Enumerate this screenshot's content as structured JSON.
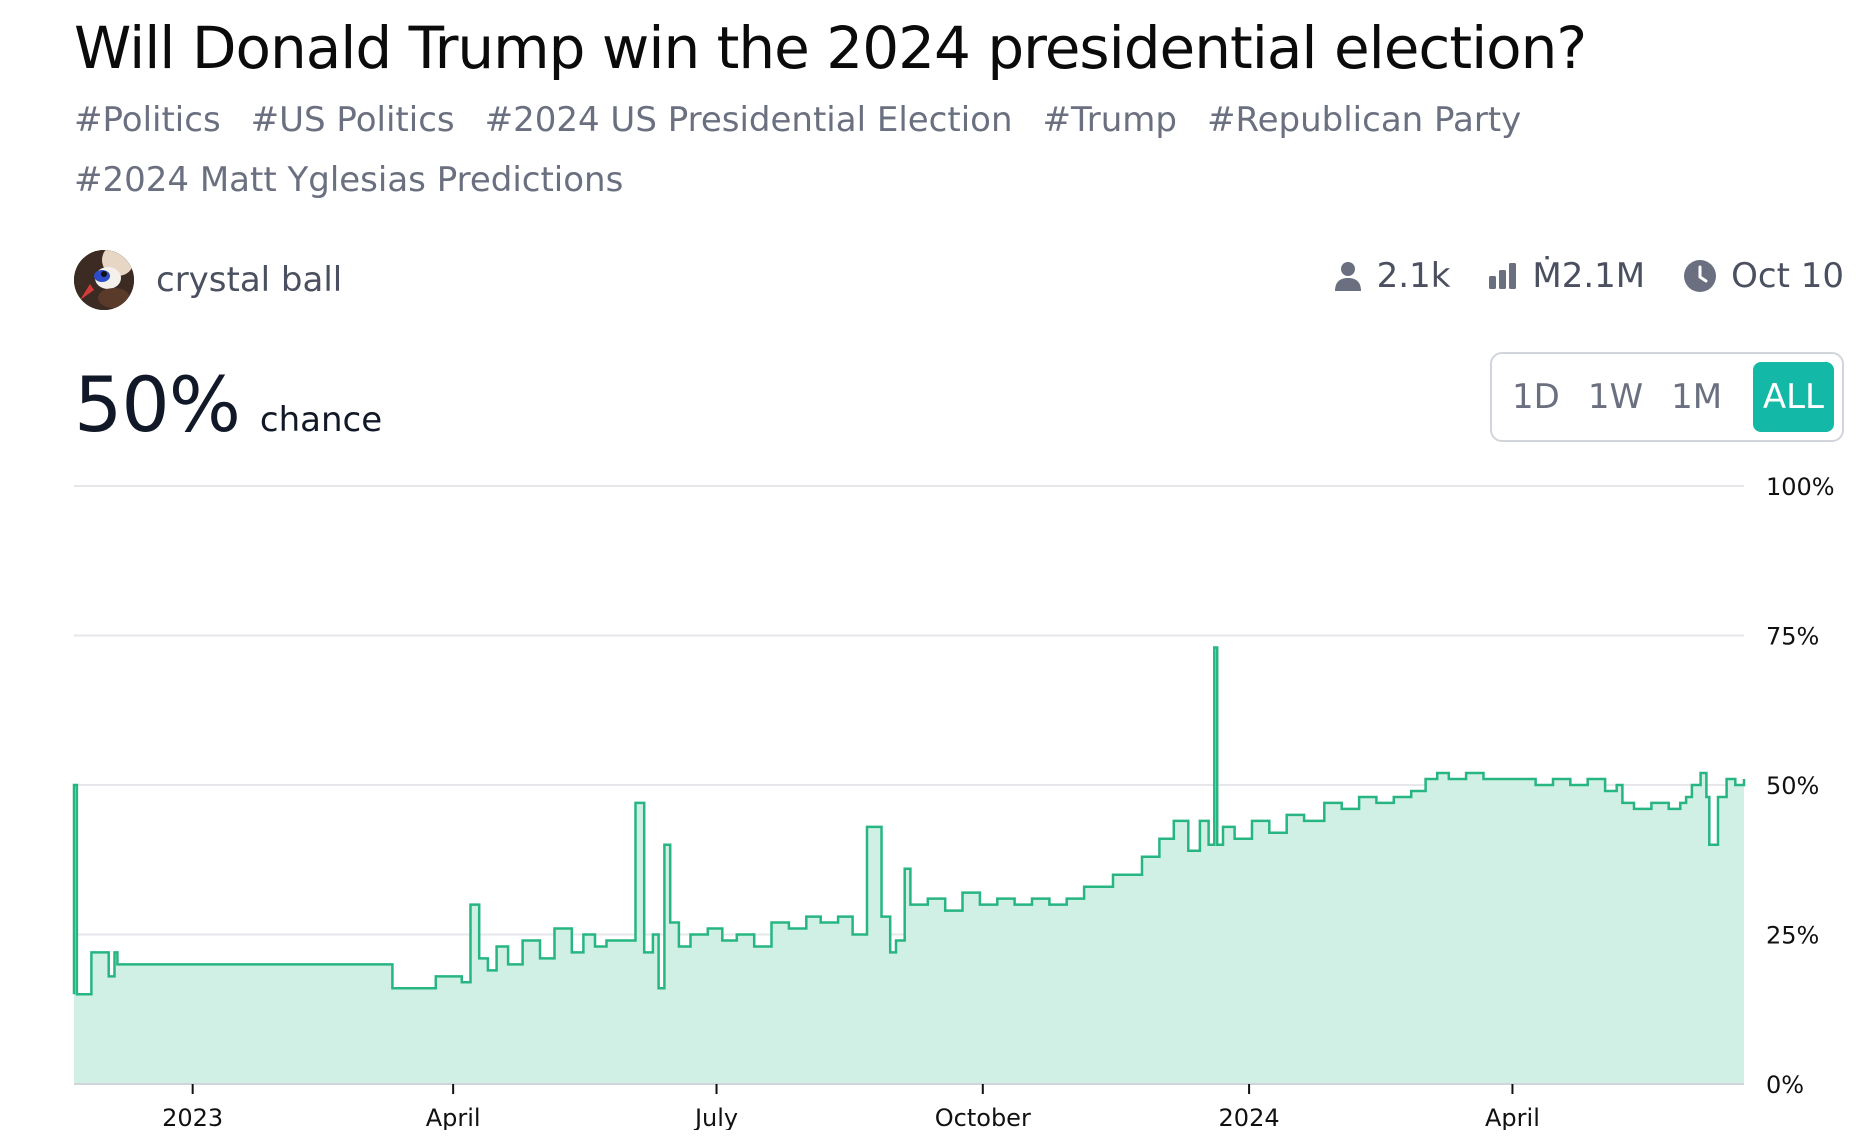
{
  "market": {
    "title": "Will Donald Trump win the 2024 presidential election?",
    "tags": [
      "#Politics",
      "#US Politics",
      "#2024 US Presidential Election",
      "#Trump",
      "#Republican Party",
      "#2024 Matt Yglesias Predictions"
    ],
    "author": "crystal ball",
    "stats": {
      "traders": "2.1k",
      "volume": "Ṁ2.1M",
      "close_date": "Oct 10"
    },
    "probability": "50%",
    "probability_label": "chance",
    "time_ranges": [
      "1D",
      "1W",
      "1M",
      "ALL"
    ],
    "selected_range": "ALL"
  },
  "colors": {
    "line": "#27b582",
    "area": "#d1f0e5",
    "accent": "#14b8a6",
    "grid": "#e5e7eb"
  },
  "chart_data": {
    "type": "area",
    "title": "",
    "xlabel": "",
    "ylabel": "",
    "ylim": [
      0,
      100
    ],
    "xlim": [
      "2022-11-21",
      "2024-06-20"
    ],
    "y_tick_labels": [
      "0%",
      "25%",
      "50%",
      "75%",
      "100%"
    ],
    "y_ticks": [
      0,
      25,
      50,
      75,
      100
    ],
    "x_tick_labels": [
      "2023",
      "April",
      "July",
      "October",
      "2024",
      "April"
    ],
    "x_ticks": [
      "2023-01-01",
      "2023-04-01",
      "2023-07-01",
      "2023-10-01",
      "2024-01-01",
      "2024-04-01"
    ],
    "grid": true,
    "series": [
      {
        "x": [
          "2022-11-21",
          "2022-11-21",
          "2022-11-22",
          "2022-11-26",
          "2022-11-27",
          "2022-12-02",
          "2022-12-03",
          "2022-12-05",
          "2022-12-06",
          "2023-03-10",
          "2023-03-11",
          "2023-03-25",
          "2023-03-26",
          "2023-04-01",
          "2023-04-04",
          "2023-04-07",
          "2023-04-10",
          "2023-04-13",
          "2023-04-16",
          "2023-04-20",
          "2023-04-25",
          "2023-05-01",
          "2023-05-06",
          "2023-05-12",
          "2023-05-16",
          "2023-05-20",
          "2023-05-24",
          "2023-05-29",
          "2023-06-03",
          "2023-06-06",
          "2023-06-09",
          "2023-06-11",
          "2023-06-13",
          "2023-06-15",
          "2023-06-18",
          "2023-06-22",
          "2023-06-28",
          "2023-07-03",
          "2023-07-08",
          "2023-07-14",
          "2023-07-20",
          "2023-07-26",
          "2023-08-01",
          "2023-08-06",
          "2023-08-12",
          "2023-08-17",
          "2023-08-22",
          "2023-08-27",
          "2023-08-30",
          "2023-09-01",
          "2023-09-04",
          "2023-09-06",
          "2023-09-08",
          "2023-09-12",
          "2023-09-18",
          "2023-09-24",
          "2023-09-30",
          "2023-10-06",
          "2023-10-12",
          "2023-10-18",
          "2023-10-24",
          "2023-10-30",
          "2023-11-05",
          "2023-11-10",
          "2023-11-15",
          "2023-11-20",
          "2023-11-25",
          "2023-12-01",
          "2023-12-06",
          "2023-12-11",
          "2023-12-15",
          "2023-12-18",
          "2023-12-20",
          "2023-12-21",
          "2023-12-23",
          "2023-12-27",
          "2024-01-02",
          "2024-01-08",
          "2024-01-14",
          "2024-01-20",
          "2024-01-27",
          "2024-02-02",
          "2024-02-08",
          "2024-02-14",
          "2024-02-20",
          "2024-02-26",
          "2024-03-02",
          "2024-03-06",
          "2024-03-10",
          "2024-03-16",
          "2024-03-22",
          "2024-03-28",
          "2024-04-03",
          "2024-04-09",
          "2024-04-15",
          "2024-04-21",
          "2024-04-27",
          "2024-05-03",
          "2024-05-07",
          "2024-05-09",
          "2024-05-13",
          "2024-05-19",
          "2024-05-25",
          "2024-05-29",
          "2024-05-31",
          "2024-06-02",
          "2024-06-05",
          "2024-06-07",
          "2024-06-08",
          "2024-06-11",
          "2024-06-14",
          "2024-06-17",
          "2024-06-20"
        ],
        "y": [
          15,
          50,
          15,
          15,
          22,
          22,
          18,
          22,
          20,
          20,
          16,
          16,
          18,
          18,
          17,
          30,
          21,
          19,
          23,
          20,
          24,
          21,
          26,
          22,
          25,
          23,
          24,
          24,
          47,
          22,
          25,
          16,
          40,
          27,
          23,
          25,
          26,
          24,
          25,
          23,
          27,
          26,
          28,
          27,
          28,
          25,
          43,
          28,
          22,
          24,
          36,
          30,
          30,
          31,
          29,
          32,
          30,
          31,
          30,
          31,
          30,
          31,
          33,
          33,
          35,
          35,
          38,
          41,
          44,
          39,
          44,
          40,
          73,
          40,
          43,
          41,
          44,
          42,
          45,
          44,
          47,
          46,
          48,
          47,
          48,
          49,
          51,
          52,
          51,
          52,
          51,
          51,
          51,
          50,
          51,
          50,
          51,
          49,
          50,
          47,
          46,
          47,
          46,
          47,
          48,
          50,
          52,
          48,
          40,
          48,
          51,
          50,
          51
        ]
      }
    ]
  }
}
